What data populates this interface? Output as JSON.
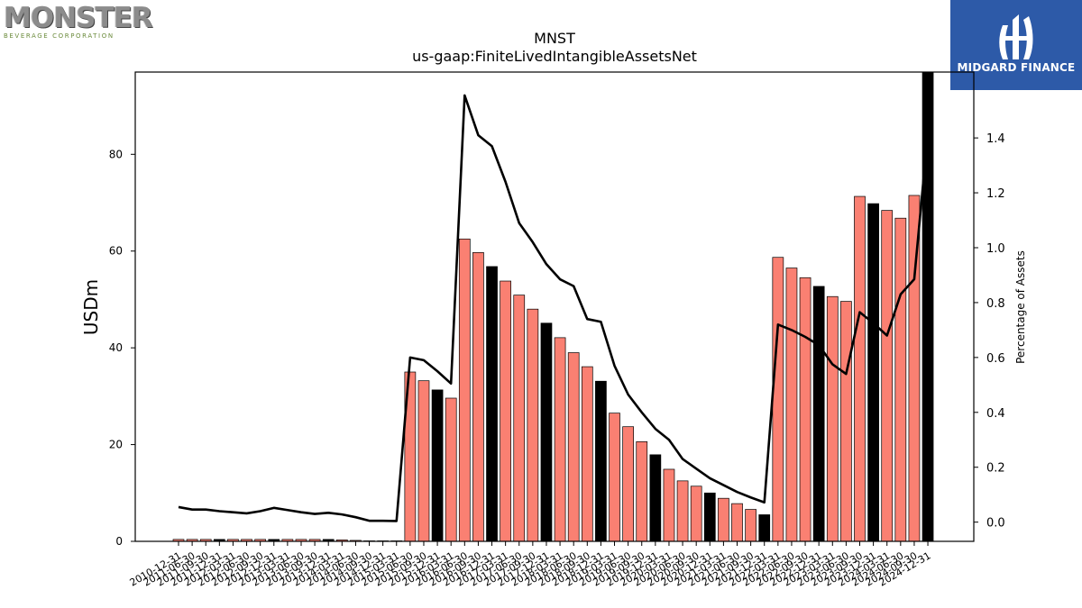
{
  "logos": {
    "left_word": "MONSTER",
    "left_sub": "BEVERAGE CORPORATION",
    "right_name": "MIDGARD FINANCE"
  },
  "colors": {
    "bar": "#fa8072",
    "bar_highlight": "#000000",
    "line": "#000000",
    "brand_blue": "#2d5aa8"
  },
  "chart_data": {
    "type": "bar",
    "title": "MNST",
    "subtitle": "us-gaap:FiniteLivedIntangibleAssetsNet",
    "ylabel": "USDm",
    "y2label": "Percentage of Assets",
    "ylim": [
      0,
      97
    ],
    "y2lim": [
      -0.07,
      1.64
    ],
    "yticks": [
      0,
      20,
      40,
      60,
      80
    ],
    "y2ticks": [
      "0.0",
      "0.2",
      "0.4",
      "0.6",
      "0.8",
      "1.0",
      "1.2",
      "1.4"
    ],
    "categories": [
      "2010-12-31",
      "2011-06-30",
      "2011-09-30",
      "2011-12-31",
      "2012-03-31",
      "2012-06-30",
      "2012-09-30",
      "2012-12-31",
      "2013-03-31",
      "2013-06-30",
      "2013-09-30",
      "2013-12-31",
      "2014-03-31",
      "2014-06-30",
      "2014-09-30",
      "2014-12-31",
      "2015-03-31",
      "2015-06-30",
      "2015-09-30",
      "2015-12-31",
      "2016-03-31",
      "2016-06-30",
      "2016-09-30",
      "2016-12-31",
      "2017-03-31",
      "2017-06-30",
      "2017-09-30",
      "2017-12-31",
      "2018-03-31",
      "2018-06-30",
      "2018-09-30",
      "2018-12-31",
      "2019-03-31",
      "2019-06-30",
      "2019-09-30",
      "2019-12-31",
      "2020-03-31",
      "2020-06-30",
      "2020-09-30",
      "2020-12-31",
      "2021-03-31",
      "2021-06-30",
      "2021-09-30",
      "2021-12-31",
      "2022-03-31",
      "2022-06-30",
      "2022-09-30",
      "2022-12-31",
      "2023-03-31",
      "2023-06-30",
      "2023-09-30",
      "2023-12-31",
      "2024-03-31",
      "2024-06-30",
      "2024-09-30",
      "2024-12-31"
    ],
    "series": [
      {
        "type": "bar",
        "values": [
          0.4,
          0.4,
          0.4,
          0.4,
          0.4,
          0.4,
          0.4,
          0.4,
          0.4,
          0.4,
          0.4,
          0.4,
          0.3,
          0.2,
          0.1,
          0.1,
          0.1,
          35,
          33.2,
          31.3,
          29.6,
          62.5,
          59.7,
          56.8,
          53.8,
          50.9,
          48,
          45.1,
          42.1,
          39,
          36.1,
          33.1,
          26.5,
          23.7,
          20.6,
          17.9,
          14.9,
          12.5,
          11.4,
          10,
          8.9,
          7.8,
          6.6,
          5.5,
          58.7,
          56.5,
          54.5,
          52.7,
          50.6,
          49.6,
          71.3,
          69.8,
          68.4,
          66.8,
          71.5,
          97
        ],
        "highlight": [
          false,
          false,
          false,
          true,
          false,
          false,
          false,
          true,
          false,
          false,
          false,
          true,
          false,
          false,
          false,
          true,
          false,
          false,
          false,
          true,
          false,
          false,
          false,
          true,
          false,
          false,
          false,
          true,
          false,
          false,
          false,
          true,
          false,
          false,
          false,
          true,
          false,
          false,
          false,
          true,
          false,
          false,
          false,
          true,
          false,
          false,
          false,
          true,
          false,
          false,
          false,
          true,
          false,
          false,
          false,
          true
        ]
      },
      {
        "type": "line",
        "axis": "right",
        "values": [
          0.055,
          0.046,
          0.046,
          0.04,
          0.036,
          0.032,
          0.04,
          0.052,
          0.044,
          0.036,
          0.03,
          0.034,
          0.028,
          0.018,
          0.005,
          0.005,
          0.004,
          0.6,
          0.59,
          0.55,
          0.505,
          1.555,
          1.41,
          1.37,
          1.24,
          1.09,
          1.02,
          0.94,
          0.885,
          0.86,
          0.74,
          0.73,
          0.57,
          0.465,
          0.4,
          0.34,
          0.3,
          0.23,
          0.195,
          0.16,
          0.135,
          0.11,
          0.09,
          0.072,
          0.72,
          0.7,
          0.675,
          0.645,
          0.575,
          0.54,
          0.765,
          0.725,
          0.68,
          0.83,
          0.885,
          1.42
        ]
      }
    ]
  }
}
